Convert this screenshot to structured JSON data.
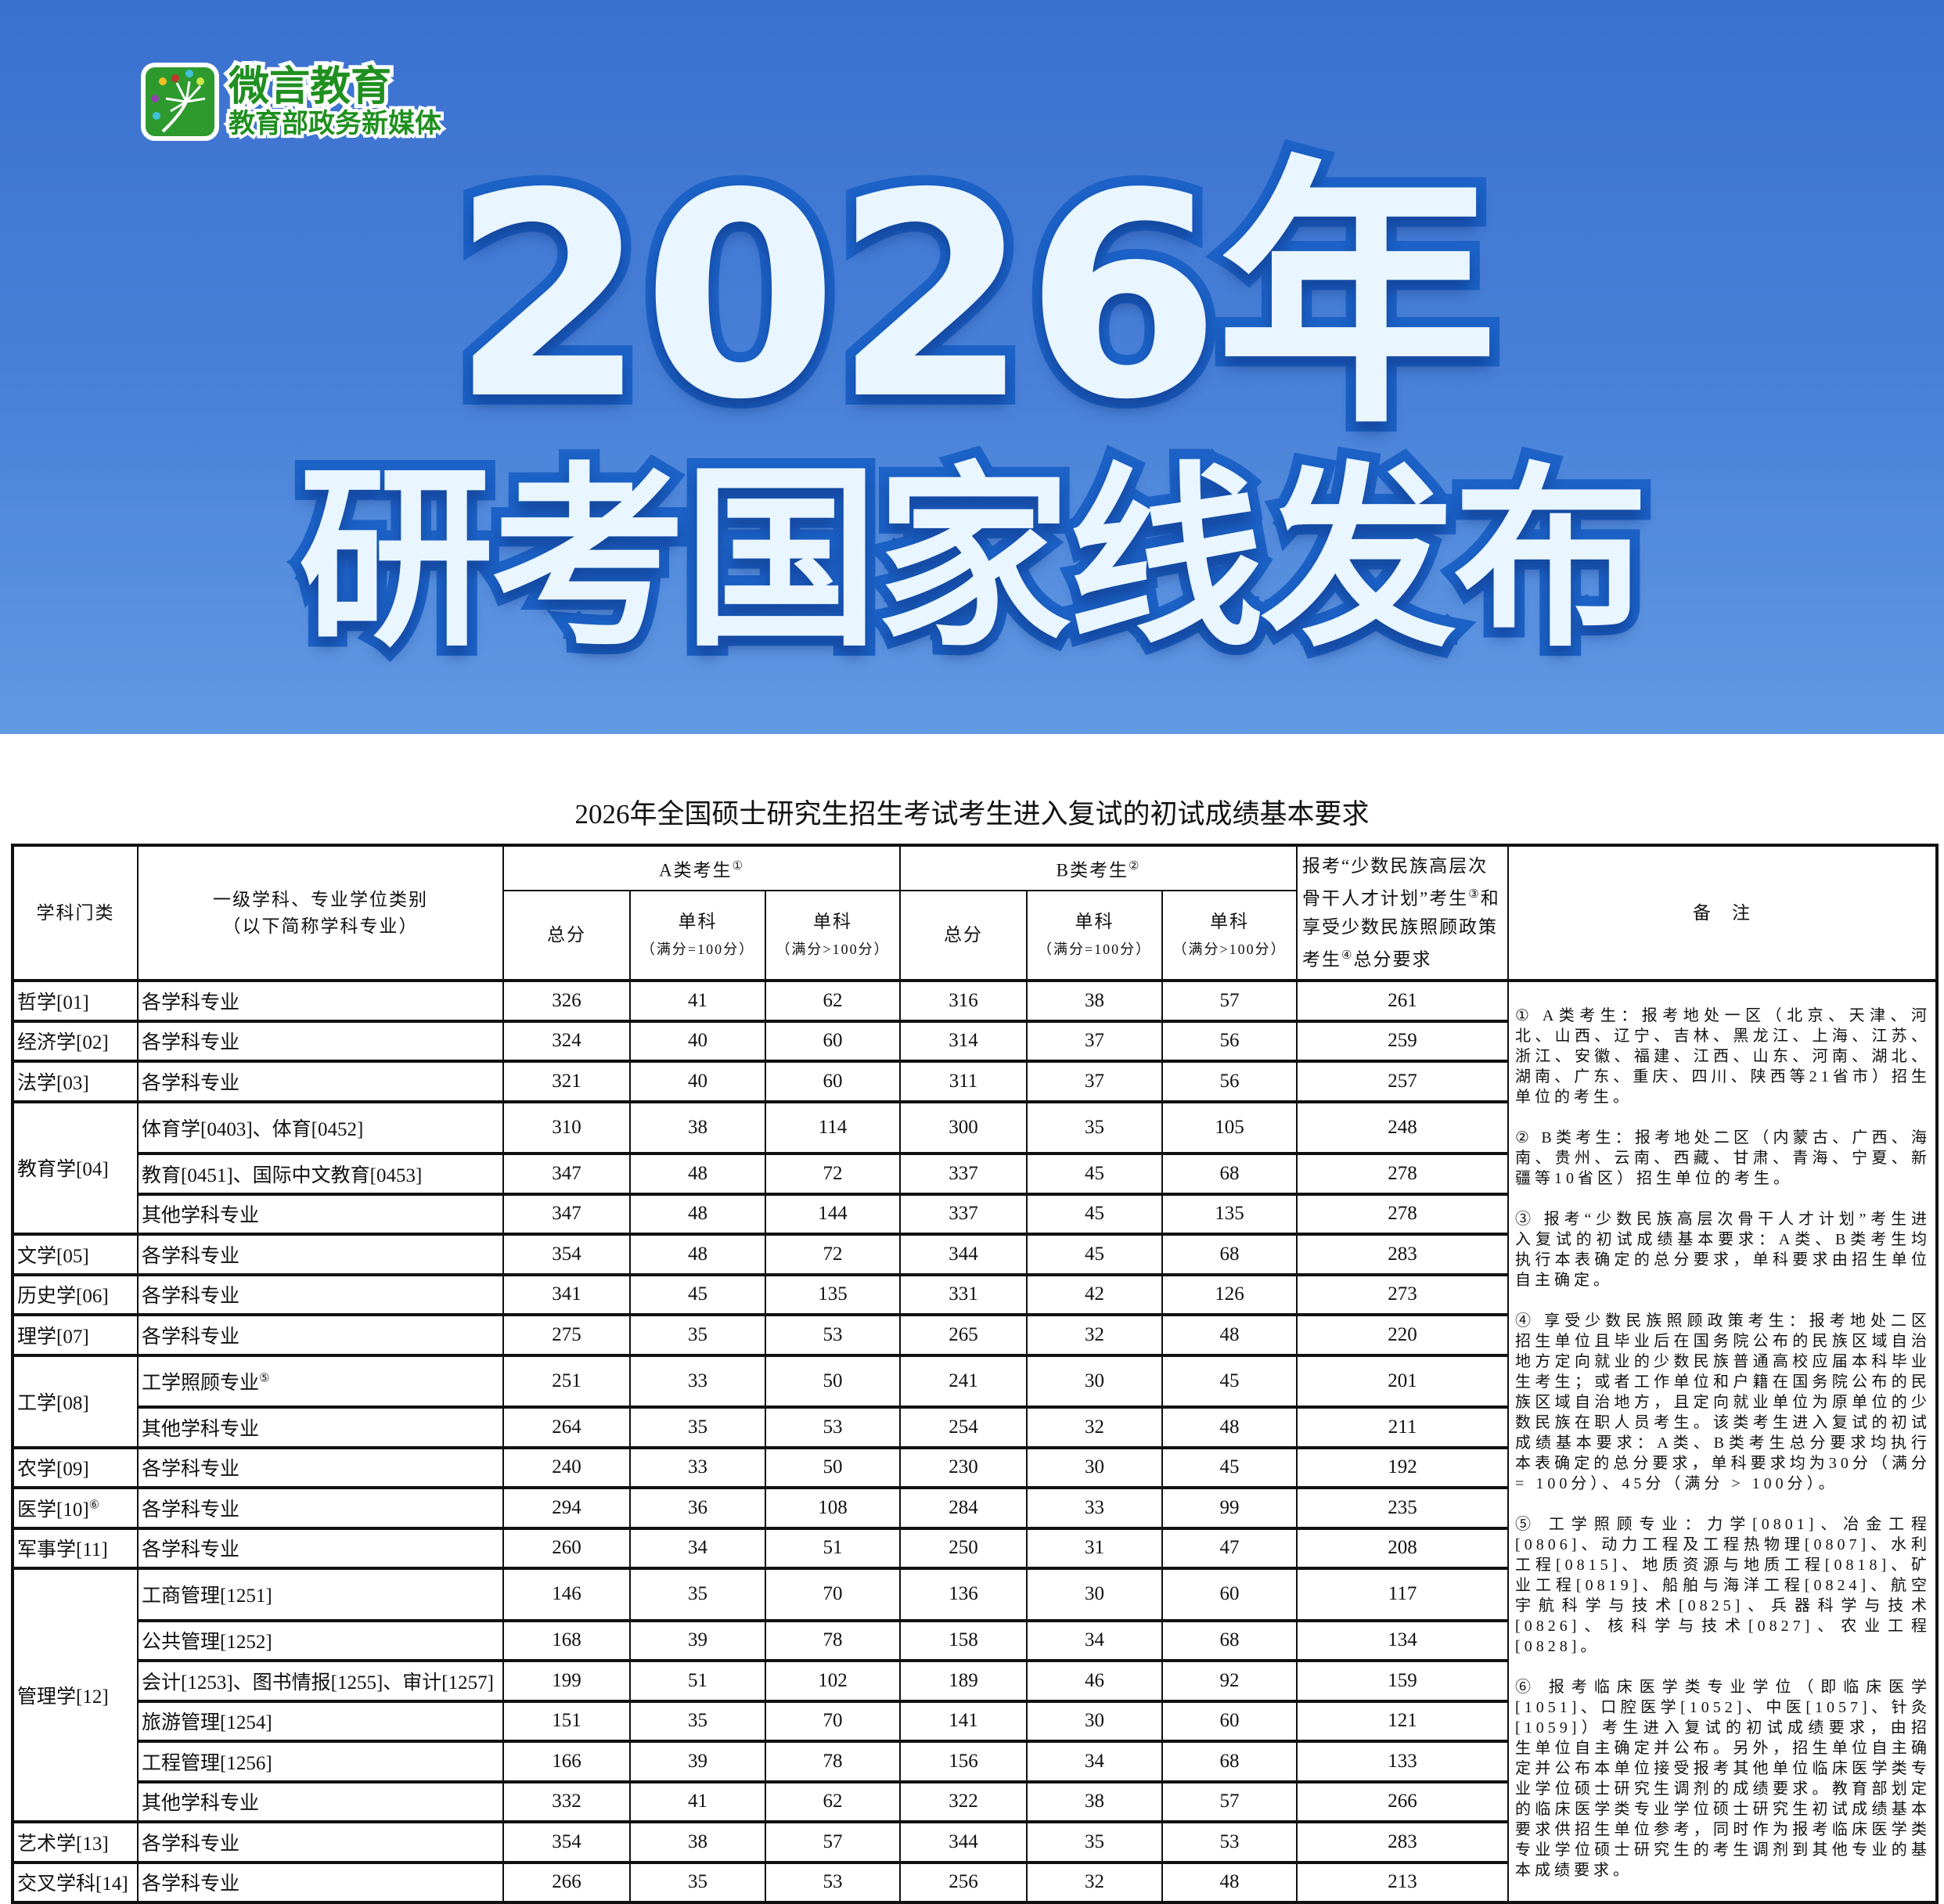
{
  "banner": {
    "logo_name": "微言教育",
    "logo_sub": "教育部政务新媒体",
    "headline_year": "2026年",
    "headline_main": "研考国家线发布"
  },
  "table_title": "2026年全国硕士研究生招生考试考生进入复试的初试成绩基本要求",
  "headers": {
    "category": "学科门类",
    "subject": "一级学科、专业学位类别",
    "subject_note": "（以下简称学科专业）",
    "group_a": "A类考生",
    "group_a_ref": "①",
    "group_b": "B类考生",
    "group_b_ref": "②",
    "total": "总分",
    "single": "单科",
    "full_eq_100": "（满分=100分）",
    "full_gt_100": "（满分>100分）",
    "minority_1": "报考“少数民族高层次骨干人才计划”考生",
    "minority_ref1": "③",
    "minority_2": "和享受少数民族照顾政策考生",
    "minority_ref2": "④",
    "minority_3": "总分要求",
    "remarks": "备　注"
  },
  "groups": [
    {
      "category": "哲学[01]",
      "rows": [
        {
          "subject": "各学科专业",
          "v": [
            "326",
            "41",
            "62",
            "316",
            "38",
            "57",
            "261"
          ]
        }
      ]
    },
    {
      "category": "经济学[02]",
      "rows": [
        {
          "subject": "各学科专业",
          "v": [
            "324",
            "40",
            "60",
            "314",
            "37",
            "56",
            "259"
          ]
        }
      ]
    },
    {
      "category": "法学[03]",
      "rows": [
        {
          "subject": "各学科专业",
          "v": [
            "321",
            "40",
            "60",
            "311",
            "37",
            "56",
            "257"
          ]
        }
      ]
    },
    {
      "category": "教育学[04]",
      "rows": [
        {
          "subject": "体育学[0403]、体育[0452]",
          "v": [
            "310",
            "38",
            "114",
            "300",
            "35",
            "105",
            "248"
          ]
        },
        {
          "subject": "教育[0451]、国际中文教育[0453]",
          "v": [
            "347",
            "48",
            "72",
            "337",
            "45",
            "68",
            "278"
          ]
        },
        {
          "subject": "其他学科专业",
          "v": [
            "347",
            "48",
            "144",
            "337",
            "45",
            "135",
            "278"
          ]
        }
      ]
    },
    {
      "category": "文学[05]",
      "rows": [
        {
          "subject": "各学科专业",
          "v": [
            "354",
            "48",
            "72",
            "344",
            "45",
            "68",
            "283"
          ]
        }
      ]
    },
    {
      "category": "历史学[06]",
      "rows": [
        {
          "subject": "各学科专业",
          "v": [
            "341",
            "45",
            "135",
            "331",
            "42",
            "126",
            "273"
          ]
        }
      ]
    },
    {
      "category": "理学[07]",
      "rows": [
        {
          "subject": "各学科专业",
          "v": [
            "275",
            "35",
            "53",
            "265",
            "32",
            "48",
            "220"
          ]
        }
      ]
    },
    {
      "category": "工学[08]",
      "rows": [
        {
          "subject": "工学照顾专业",
          "ref": "⑤",
          "v": [
            "251",
            "33",
            "50",
            "241",
            "30",
            "45",
            "201"
          ]
        },
        {
          "subject": "其他学科专业",
          "v": [
            "264",
            "35",
            "53",
            "254",
            "32",
            "48",
            "211"
          ]
        }
      ]
    },
    {
      "category": "农学[09]",
      "rows": [
        {
          "subject": "各学科专业",
          "v": [
            "240",
            "33",
            "50",
            "230",
            "30",
            "45",
            "192"
          ]
        }
      ]
    },
    {
      "category": "医学[10]",
      "ref": "⑥",
      "rows": [
        {
          "subject": "各学科专业",
          "v": [
            "294",
            "36",
            "108",
            "284",
            "33",
            "99",
            "235"
          ]
        }
      ]
    },
    {
      "category": "军事学[11]",
      "rows": [
        {
          "subject": "各学科专业",
          "v": [
            "260",
            "34",
            "51",
            "250",
            "31",
            "47",
            "208"
          ]
        }
      ]
    },
    {
      "category": "管理学[12]",
      "rows": [
        {
          "subject": "工商管理[1251]",
          "v": [
            "146",
            "35",
            "70",
            "136",
            "30",
            "60",
            "117"
          ]
        },
        {
          "subject": "公共管理[1252]",
          "v": [
            "168",
            "39",
            "78",
            "158",
            "34",
            "68",
            "134"
          ]
        },
        {
          "subject": "会计[1253]、图书情报[1255]、审计[1257]",
          "v": [
            "199",
            "51",
            "102",
            "189",
            "46",
            "92",
            "159"
          ]
        },
        {
          "subject": "旅游管理[1254]",
          "v": [
            "151",
            "35",
            "70",
            "141",
            "30",
            "60",
            "121"
          ]
        },
        {
          "subject": "工程管理[1256]",
          "v": [
            "166",
            "39",
            "78",
            "156",
            "34",
            "68",
            "133"
          ]
        },
        {
          "subject": "其他学科专业",
          "v": [
            "332",
            "41",
            "62",
            "322",
            "38",
            "57",
            "266"
          ]
        }
      ]
    },
    {
      "category": "艺术学[13]",
      "rows": [
        {
          "subject": "各学科专业",
          "v": [
            "354",
            "38",
            "57",
            "344",
            "35",
            "53",
            "283"
          ]
        }
      ]
    },
    {
      "category": "交叉学科[14]",
      "rows": [
        {
          "subject": "各学科专业",
          "v": [
            "266",
            "35",
            "53",
            "256",
            "32",
            "48",
            "213"
          ]
        }
      ]
    }
  ],
  "notes": [
    "① A类考生：报考地处一区（北京、天津、河北、山西、辽宁、吉林、黑龙江、上海、江苏、浙江、安徽、福建、江西、山东、河南、湖北、湖南、广东、重庆、四川、陕西等21省市）招生单位的考生。",
    "② B类考生：报考地处二区（内蒙古、广西、海南、贵州、云南、西藏、甘肃、青海、宁夏、新疆等10省区）招生单位的考生。",
    "③ 报考“少数民族高层次骨干人才计划”考生进入复试的初试成绩基本要求：A类、B类考生均执行本表确定的总分要求，单科要求由招生单位自主确定。",
    "④ 享受少数民族照顾政策考生：报考地处二区招生单位且毕业后在国务院公布的民族区域自治地方定向就业的少数民族普通高校应届本科毕业生考生；或者工作单位和户籍在国务院公布的民族区域自治地方，且定向就业单位为原单位的少数民族在职人员考生。该类考生进入复试的初试成绩基本要求：A类、B类考生总分要求均执行本表确定的总分要求，单科要求均为30分（满分 = 100分）、45分（满分 > 100分）。",
    "⑤ 工学照顾专业：力学[0801]、冶金工程[0806]、动力工程及工程热物理[0807]、水利工程[0815]、地质资源与地质工程[0818]、矿业工程[0819]、船舶与海洋工程[0824]、航空宇航科学与技术[0825]、兵器科学与技术[0826]、核科学与技术[0827]、农业工程[0828]。",
    "⑥ 报考临床医学类专业学位（即临床医学[1051]、口腔医学[1052]、中医[1057]、针灸[1059]）考生进入复试的初试成绩要求，由招生单位自主确定并公布。另外，招生单位自主确定并公布本单位接受报考其他单位临床医学类专业学位硕士研究生调剂的成绩要求。教育部划定的临床医学类专业学位硕士研究生初试成绩基本要求供招生单位参考，同时作为报考临床医学类专业学位硕士研究生的考生调剂到其他专业的基本成绩要求。"
  ],
  "colors": {
    "banner_top": "#3a70cf",
    "banner_bottom": "#6299e3",
    "headline_fill": "#eaf6ff",
    "headline_stroke": "#1c62c7",
    "logo_green": "#2e9a2e"
  }
}
